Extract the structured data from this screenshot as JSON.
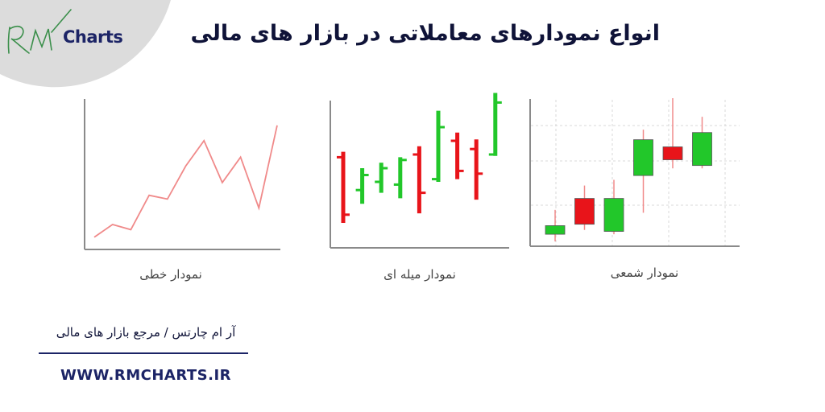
{
  "header": {
    "logo_text": "Charts",
    "logo_script": "RM",
    "title": "انواع نمودارهای معاملاتی در بازار های مالی"
  },
  "colors": {
    "line": "#f08a8a",
    "bull": "#22c72a",
    "bear": "#e8141a",
    "axis": "#8a8a8a",
    "grid": "#d8d8d8",
    "brand": "#1c2466",
    "corner": "#dcdcdc"
  },
  "chart_data": [
    {
      "type": "line",
      "caption": "نمودار خطی",
      "x": [
        1,
        2,
        3,
        4,
        5,
        6,
        7,
        8,
        9,
        10,
        11
      ],
      "values": [
        2,
        12,
        8,
        35,
        32,
        58,
        78,
        45,
        65,
        25,
        90
      ],
      "ylim": [
        0,
        100
      ],
      "grid": false
    },
    {
      "type": "ohlc",
      "caption": "نمودار میله ای",
      "ylim": [
        0,
        100
      ],
      "grid": false,
      "bars": [
        {
          "o": 58,
          "h": 62,
          "l": 10,
          "c": 16,
          "dir": "down"
        },
        {
          "o": 34,
          "h": 50,
          "l": 24,
          "c": 45,
          "dir": "up"
        },
        {
          "o": 40,
          "h": 54,
          "l": 32,
          "c": 50,
          "dir": "up"
        },
        {
          "o": 38,
          "h": 58,
          "l": 28,
          "c": 56,
          "dir": "up"
        },
        {
          "o": 60,
          "h": 66,
          "l": 17,
          "c": 32,
          "dir": "down"
        },
        {
          "o": 42,
          "h": 92,
          "l": 40,
          "c": 80,
          "dir": "up"
        },
        {
          "o": 70,
          "h": 76,
          "l": 42,
          "c": 48,
          "dir": "down"
        },
        {
          "o": 64,
          "h": 71,
          "l": 27,
          "c": 46,
          "dir": "down"
        },
        {
          "o": 60,
          "h": 105,
          "l": 59,
          "c": 98,
          "dir": "up"
        }
      ]
    },
    {
      "type": "candlestick",
      "caption": "نمودار شمعی",
      "ylim": [
        0,
        100
      ],
      "grid": true,
      "candles": [
        {
          "o": 5,
          "h": 22,
          "l": 0,
          "c": 11,
          "dir": "up"
        },
        {
          "o": 30,
          "h": 39,
          "l": 8,
          "c": 12,
          "dir": "down"
        },
        {
          "o": 7,
          "h": 43,
          "l": 5,
          "c": 30,
          "dir": "up"
        },
        {
          "o": 46,
          "h": 78,
          "l": 20,
          "c": 71,
          "dir": "up"
        },
        {
          "o": 66,
          "h": 100,
          "l": 51,
          "c": 57,
          "dir": "down"
        },
        {
          "o": 53,
          "h": 87,
          "l": 51,
          "c": 76,
          "dir": "up"
        }
      ]
    }
  ],
  "footer": {
    "tagline": "آر ام چارتس / مرجع بازار های مالی",
    "website": "WWW.RMCHARTS.IR"
  }
}
